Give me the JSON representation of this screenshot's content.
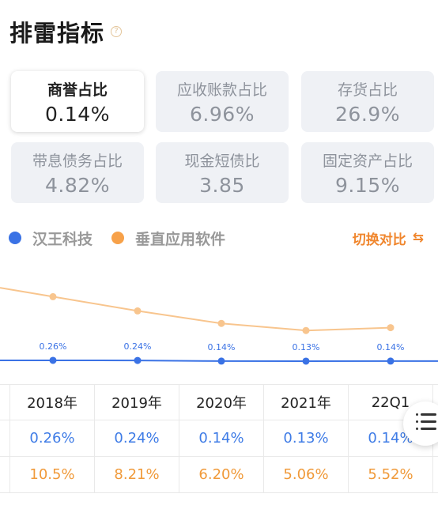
{
  "header": {
    "title": "排雷指标",
    "help_icon": "?"
  },
  "cards": [
    {
      "label": "商誉占比",
      "value": "0.14%",
      "active": true
    },
    {
      "label": "应收账款占比",
      "value": "6.96%",
      "active": false
    },
    {
      "label": "存货占比",
      "value": "26.9%",
      "active": false
    },
    {
      "label": "带息债务占比",
      "value": "4.82%",
      "active": false
    },
    {
      "label": "现金短债比",
      "value": "3.85",
      "active": false
    },
    {
      "label": "固定资产占比",
      "value": "9.15%",
      "active": false
    }
  ],
  "legend": {
    "items": [
      {
        "name": "汉王科技",
        "color": "#3a72e5"
      },
      {
        "name": "垂直应用软件",
        "color": "#f7a149"
      }
    ],
    "switch_label": "切换对比",
    "switch_icon": "switch-icon"
  },
  "chart_data": {
    "type": "line",
    "x": [
      "2018年",
      "2019年",
      "2020年",
      "2021年",
      "22Q1"
    ],
    "series": [
      {
        "name": "汉王科技",
        "color": "#3a72e5",
        "values": [
          0.26,
          0.24,
          0.14,
          0.13,
          0.14
        ],
        "labels": [
          "0.26%",
          "0.24%",
          "0.14%",
          "0.13%",
          "0.14%"
        ]
      },
      {
        "name": "垂直应用软件",
        "color": "#f8c58e",
        "values": [
          10.5,
          8.21,
          6.2,
          5.06,
          5.52
        ]
      }
    ]
  },
  "table": {
    "headers": [
      "2018年",
      "2019年",
      "2020年",
      "2021年",
      "22Q1"
    ],
    "rows": [
      {
        "color": "#3f7ce6",
        "values": [
          "0.26%",
          "0.24%",
          "0.14%",
          "0.13%",
          "0.14%"
        ]
      },
      {
        "color": "#f09a3a",
        "values": [
          "10.5%",
          "8.21%",
          "6.20%",
          "5.06%",
          "5.52%"
        ]
      }
    ]
  },
  "float_button": {
    "icon": "list-menu-icon"
  }
}
